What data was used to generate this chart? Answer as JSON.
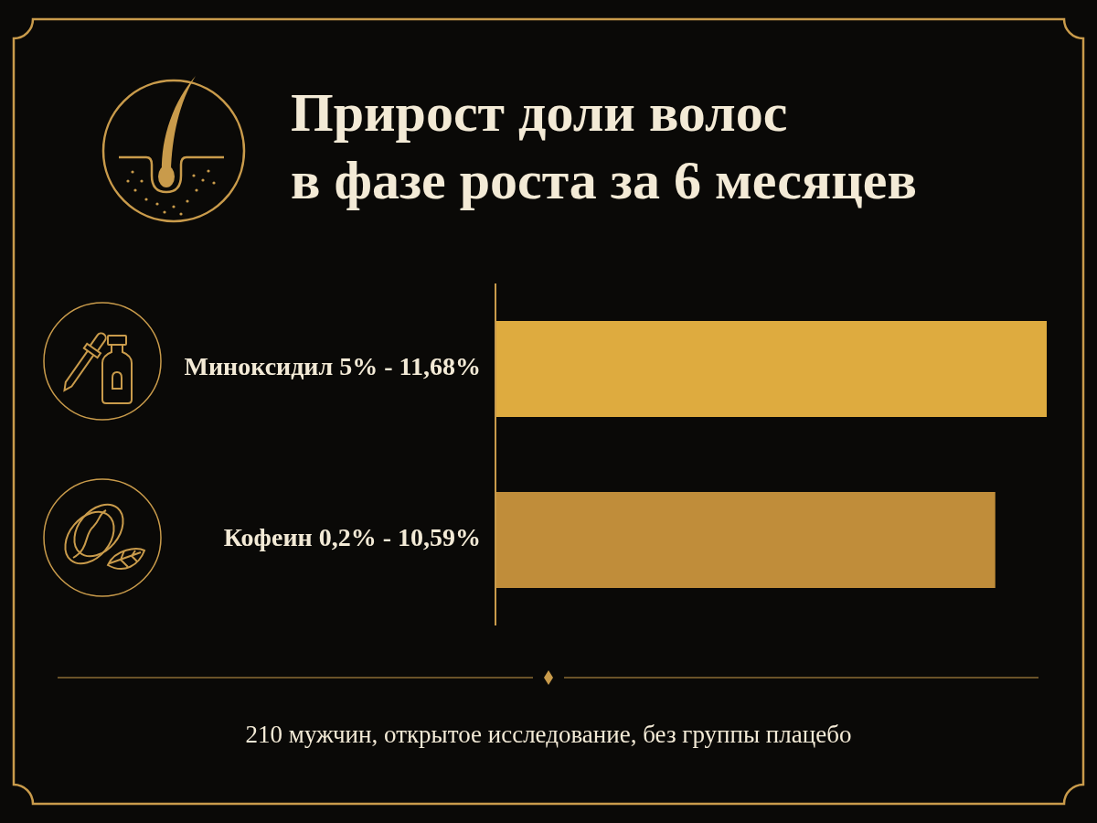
{
  "chart_data": {
    "type": "bar",
    "orientation": "horizontal",
    "title": "Прирост доли волос\nв фазе роста за 6 месяцев",
    "categories": [
      "Миноксидил 5% -",
      "Кофеин 0,2% -"
    ],
    "values": [
      11.68,
      10.59
    ],
    "value_labels": [
      "11,68%",
      "10,59%"
    ],
    "colors": [
      "#deab3f",
      "#c08d3a"
    ],
    "tick_labels": "y",
    "annotations": [
      "210 мужчин, открытое исследование, без группы плацебо"
    ]
  }
}
